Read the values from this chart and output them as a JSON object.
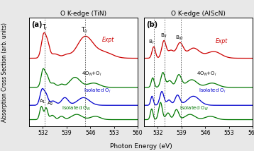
{
  "title_left": "O K-edge (TiN)",
  "title_right": "O K-edge (AlScN)",
  "xlabel": "Photon Energy (eV)",
  "ylabel": "Absorption Cross Section (arb. units)",
  "xmin": 528,
  "xmax": 560,
  "xticks": [
    532,
    539,
    546,
    553,
    560
  ],
  "panel_a_label": "(a)",
  "panel_b_label": "(b)",
  "colors": {
    "expt": "#cc0000",
    "combo": "#007700",
    "iso_i": "#0000cc",
    "iso_n": "#007700"
  },
  "dashed_lines_a": [
    532.5,
    544.5
  ],
  "dashed_lines_b": [
    530.8,
    534.0,
    538.8
  ],
  "background_color": "#ffffff",
  "fig_bg": "#e8e8e8"
}
